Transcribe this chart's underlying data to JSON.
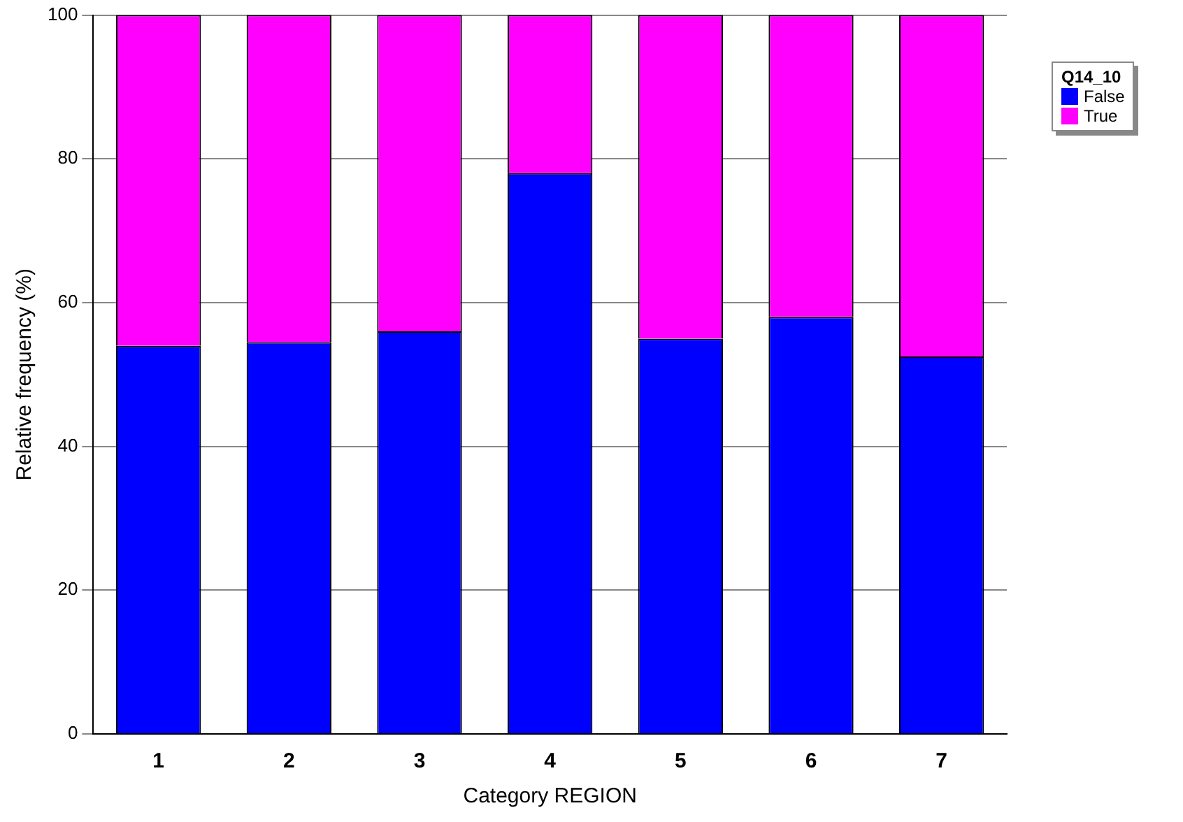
{
  "chart_data": {
    "type": "bar",
    "stacked": true,
    "xlabel": "Category REGION",
    "ylabel": "Relative frequency (%)",
    "legend_title": "Q14_10",
    "legend": "top right",
    "grid": "y",
    "ylim": [
      0,
      100
    ],
    "yticks": [
      0,
      20,
      40,
      60,
      80,
      100
    ],
    "categories": [
      "1",
      "2",
      "3",
      "4",
      "5",
      "6",
      "7"
    ],
    "series": [
      {
        "name": "False",
        "color": "#0000ff",
        "values": [
          54,
          54.5,
          56,
          78,
          55,
          58,
          52.5
        ]
      },
      {
        "name": "True",
        "color": "#ff00ff",
        "values": [
          46,
          45.5,
          44,
          22,
          45,
          42,
          47.5
        ]
      }
    ]
  }
}
